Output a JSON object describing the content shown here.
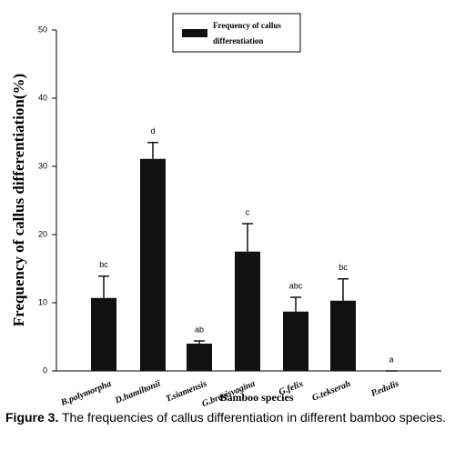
{
  "chart_data": {
    "type": "bar",
    "ylabel": "Frequency of callus differentiation(%)",
    "xlabel": "Bamboo species",
    "categories": [
      "B.polymorpha",
      "D.hamiltonii",
      "T.siamensis",
      "G.brevisvagina",
      "G.felix",
      "G.tekserah",
      "P.edulis"
    ],
    "series": [
      {
        "name": "Frequency of callus differentiation",
        "color": "#111111",
        "values": [
          10.7,
          31.1,
          4.0,
          17.5,
          8.7,
          10.3,
          0
        ],
        "errors": [
          3.2,
          2.4,
          0.4,
          4.1,
          2.1,
          3.2,
          0
        ]
      }
    ],
    "annotations": [
      "bc",
      "d",
      "ab",
      "c",
      "abc",
      "bc",
      "a"
    ],
    "ylim": [
      0,
      50
    ],
    "yticks": [
      0,
      10,
      20,
      30,
      40,
      50
    ],
    "legend": "top-center"
  },
  "caption": {
    "label": "Figure 3.",
    "text": "The frequencies of callus differentiation in different bamboo species."
  }
}
